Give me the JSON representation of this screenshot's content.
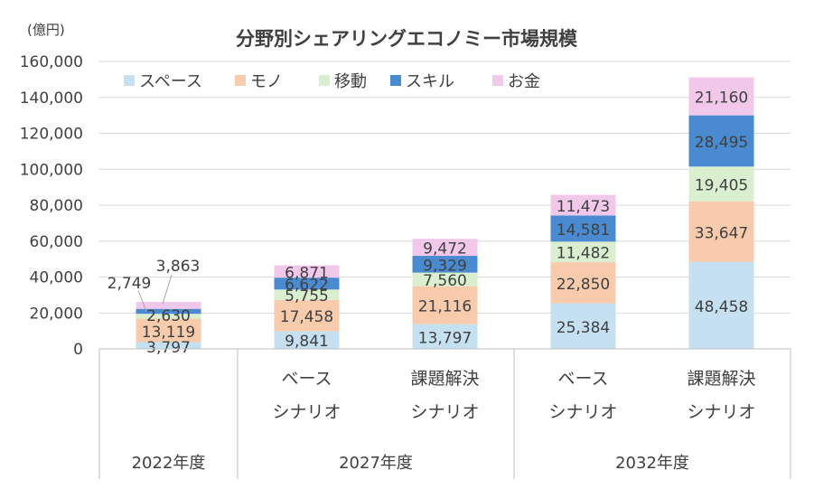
{
  "chart_data": {
    "type": "bar",
    "stacked": true,
    "title": "分野別シェアリングエコノミー市場規模",
    "unit_label": "(億円)",
    "ylim": [
      0,
      160000
    ],
    "yticks": [
      "0",
      "20,000",
      "40,000",
      "60,000",
      "80,000",
      "100,000",
      "120,000",
      "140,000",
      "160,000"
    ],
    "grid": true,
    "legend_position": "top-left",
    "categories": [
      {
        "year": "2022年度",
        "scenario": [
          "",
          ""
        ]
      },
      {
        "year": "2027年度",
        "scenario": [
          "ベース",
          "シナリオ"
        ]
      },
      {
        "year": "2027年度",
        "scenario": [
          "課題解決",
          "シナリオ"
        ]
      },
      {
        "year": "2032年度",
        "scenario": [
          "ベース",
          "シナリオ"
        ]
      },
      {
        "year": "2032年度",
        "scenario": [
          "課題解決",
          "シナリオ"
        ]
      }
    ],
    "groups": [
      "2022年度",
      "2027年度",
      "2032年度"
    ],
    "series": [
      {
        "name": "スペース",
        "color": "#c5e0f0",
        "values": [
          3797,
          9841,
          13797,
          25384,
          48458
        ],
        "labels": [
          "3,797",
          "9,841",
          "13,797",
          "25,384",
          "48,458"
        ]
      },
      {
        "name": "モノ",
        "color": "#f8cbad",
        "values": [
          13119,
          17458,
          21116,
          22850,
          33647
        ],
        "labels": [
          "13,119",
          "17,458",
          "21,116",
          "22,850",
          "33,647"
        ]
      },
      {
        "name": "移動",
        "color": "#d9efcf",
        "values": [
          2630,
          5755,
          7560,
          11482,
          19405
        ],
        "labels": [
          "2,630",
          "5,755",
          "7,560",
          "11,482",
          "19,405"
        ]
      },
      {
        "name": "スキル",
        "color": "#4a8ad0",
        "values": [
          2749,
          6622,
          9329,
          14581,
          28495
        ],
        "labels": [
          "2,749",
          "6,622",
          "9,329",
          "14,581",
          "28,495"
        ]
      },
      {
        "name": "お金",
        "color": "#f1c8ea",
        "values": [
          3863,
          6871,
          9472,
          11473,
          21160
        ],
        "labels": [
          "3,863",
          "6,871",
          "9,472",
          "11,473",
          "21,160"
        ]
      }
    ]
  }
}
